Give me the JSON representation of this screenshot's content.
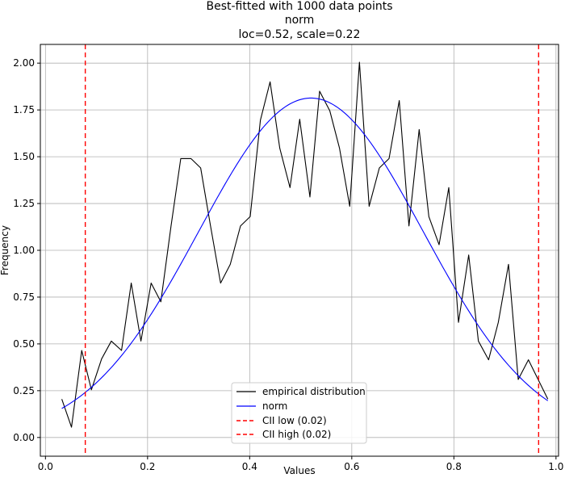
{
  "chart_data": {
    "type": "line",
    "title_lines": [
      "Best-fitted with 1000 data points",
      "norm",
      "loc=0.52, scale=0.22"
    ],
    "xlabel": "Values",
    "ylabel": "Frequency",
    "xlim": [
      -0.01,
      1.005
    ],
    "ylim": [
      -0.1,
      2.1
    ],
    "xticks": [
      0.0,
      0.2,
      0.4,
      0.6,
      0.8,
      1.0
    ],
    "xtick_labels": [
      "0.0",
      "0.2",
      "0.4",
      "0.6",
      "0.8",
      "1.0"
    ],
    "yticks": [
      0.0,
      0.25,
      0.5,
      0.75,
      1.0,
      1.25,
      1.5,
      1.75,
      2.0
    ],
    "ytick_labels": [
      "0.00",
      "0.25",
      "0.50",
      "0.75",
      "1.00",
      "1.25",
      "1.50",
      "1.75",
      "2.00"
    ],
    "grid": true,
    "legend_position": "lower center",
    "series": [
      {
        "name": "empirical distribution",
        "kind": "line",
        "color": "#000000",
        "x": [
          0.032,
          0.051,
          0.071,
          0.09,
          0.11,
          0.129,
          0.149,
          0.168,
          0.187,
          0.207,
          0.226,
          0.246,
          0.265,
          0.285,
          0.304,
          0.323,
          0.343,
          0.362,
          0.382,
          0.401,
          0.421,
          0.44,
          0.459,
          0.479,
          0.498,
          0.518,
          0.537,
          0.557,
          0.576,
          0.596,
          0.615,
          0.634,
          0.654,
          0.673,
          0.693,
          0.712,
          0.732,
          0.751,
          0.771,
          0.79,
          0.809,
          0.829,
          0.848,
          0.868,
          0.887,
          0.907,
          0.926,
          0.946,
          0.965,
          0.984
        ],
        "y": [
          0.205,
          0.055,
          0.465,
          0.255,
          0.42,
          0.515,
          0.465,
          0.825,
          0.515,
          0.825,
          0.725,
          1.13,
          1.49,
          1.49,
          1.44,
          1.135,
          0.825,
          0.925,
          1.13,
          1.18,
          1.695,
          1.9,
          1.545,
          1.335,
          1.7,
          1.285,
          1.85,
          1.745,
          1.545,
          1.235,
          2.005,
          1.235,
          1.44,
          1.49,
          1.8,
          1.13,
          1.645,
          1.18,
          1.03,
          1.335,
          0.615,
          0.975,
          0.515,
          0.415,
          0.615,
          0.925,
          0.31,
          0.415,
          0.31,
          0.205
        ]
      },
      {
        "name": "norm",
        "kind": "normal_pdf",
        "color": "#0000ff",
        "loc": 0.52,
        "scale": 0.22,
        "x_range": [
          0.032,
          0.984
        ]
      },
      {
        "name": "CII low (0.02)",
        "kind": "vline",
        "color": "#ff0000",
        "x": 0.078
      },
      {
        "name": "CII high (0.02)",
        "kind": "vline",
        "color": "#ff0000",
        "x": 0.966
      }
    ]
  }
}
